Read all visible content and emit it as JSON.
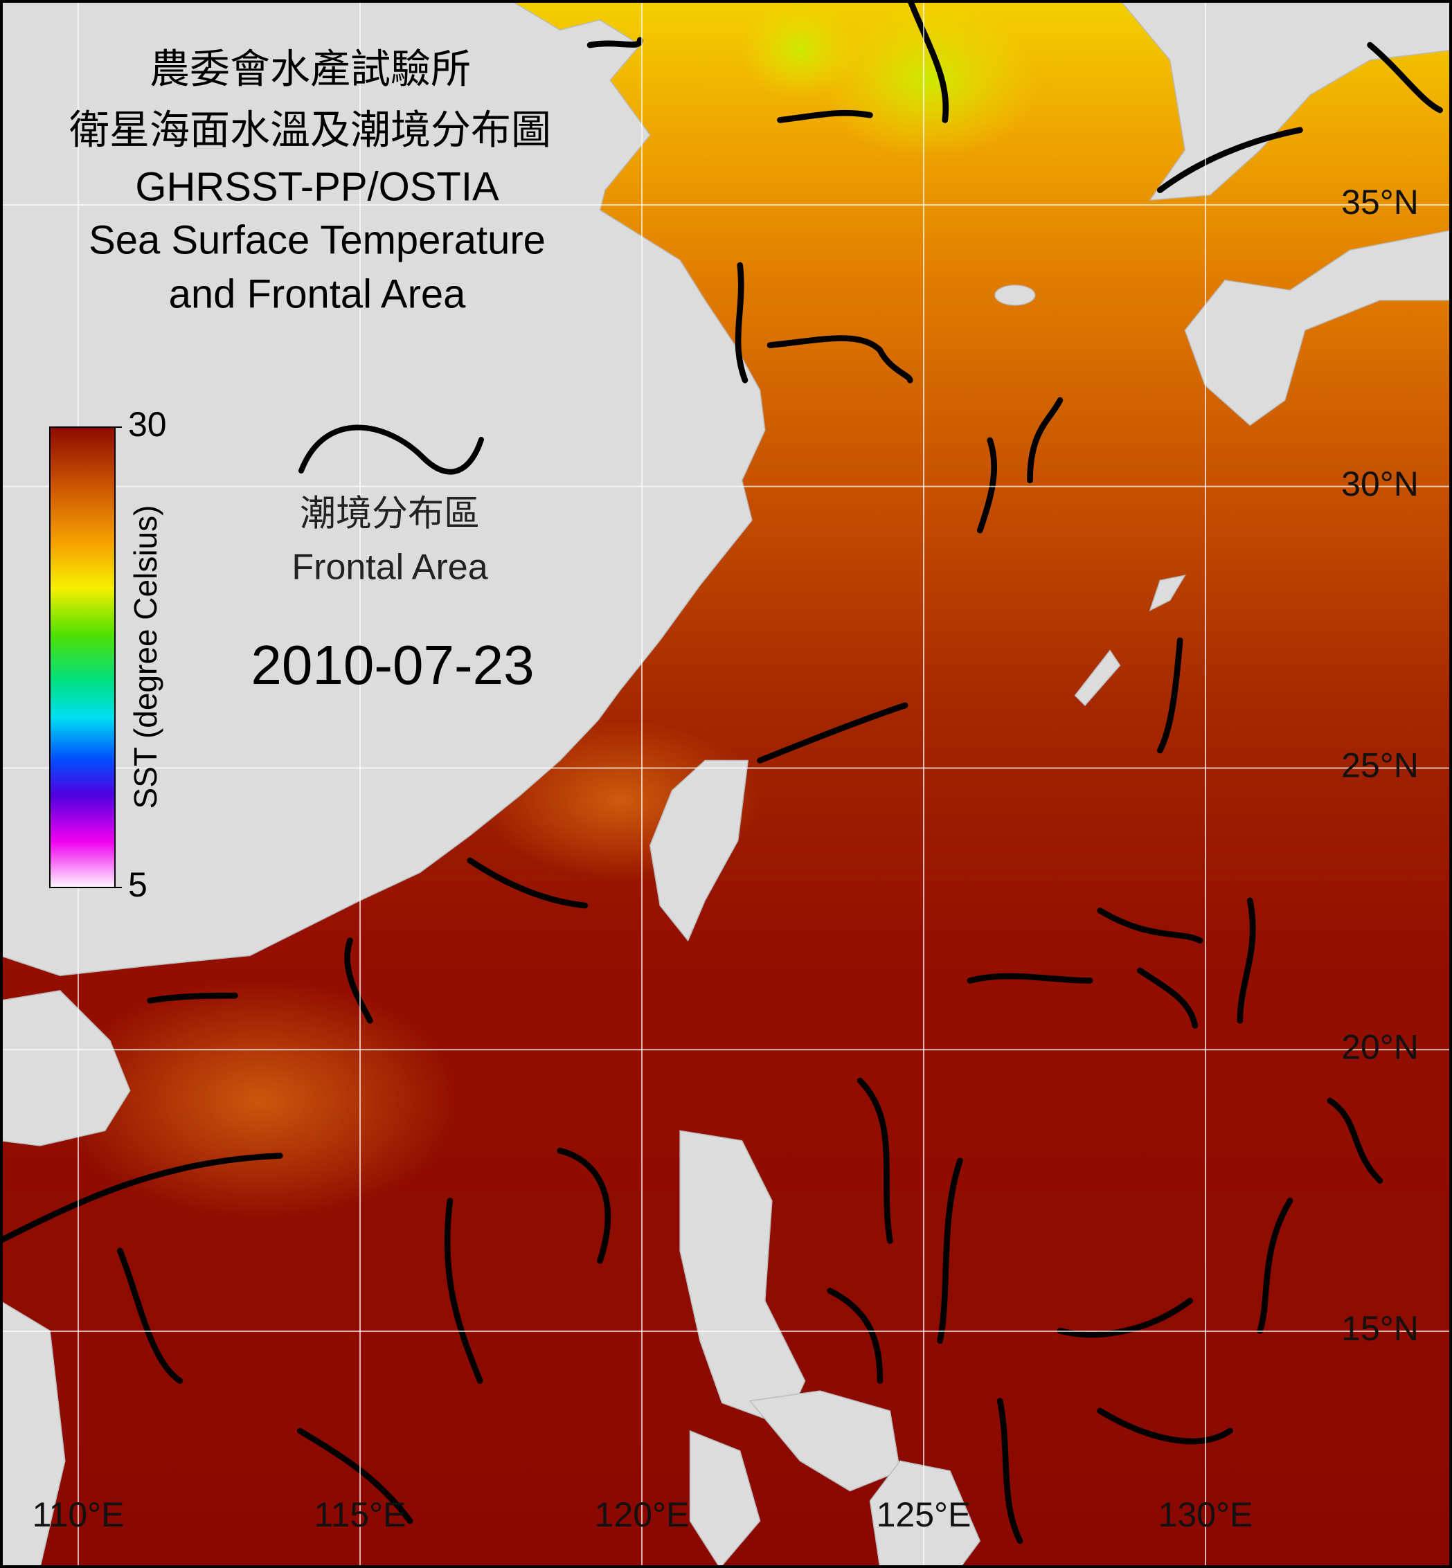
{
  "title_lines": [
    "農委會水產試驗所",
    "衛星海面水溫及潮境分布圖",
    "GHRSST-PP/OSTIA",
    "Sea Surface Temperature",
    "and Frontal Area"
  ],
  "legend": {
    "label_zh": "潮境分布區",
    "label_en": "Frontal Area"
  },
  "date": "2010-07-23",
  "colorbar": {
    "label": "SST (degree Celsius)",
    "ticks": [
      5,
      30
    ]
  },
  "longitude_ticks": [
    {
      "value": 110,
      "label": "110°E"
    },
    {
      "value": 115,
      "label": "115°E"
    },
    {
      "value": 120,
      "label": "120°E"
    },
    {
      "value": 125,
      "label": "125°E"
    },
    {
      "value": 130,
      "label": "130°E"
    }
  ],
  "latitude_ticks": [
    {
      "value": 35,
      "label": "35°N"
    },
    {
      "value": 30,
      "label": "30°N"
    },
    {
      "value": 25,
      "label": "25°N"
    },
    {
      "value": 20,
      "label": "20°N"
    },
    {
      "value": 15,
      "label": "15°N"
    }
  ]
}
